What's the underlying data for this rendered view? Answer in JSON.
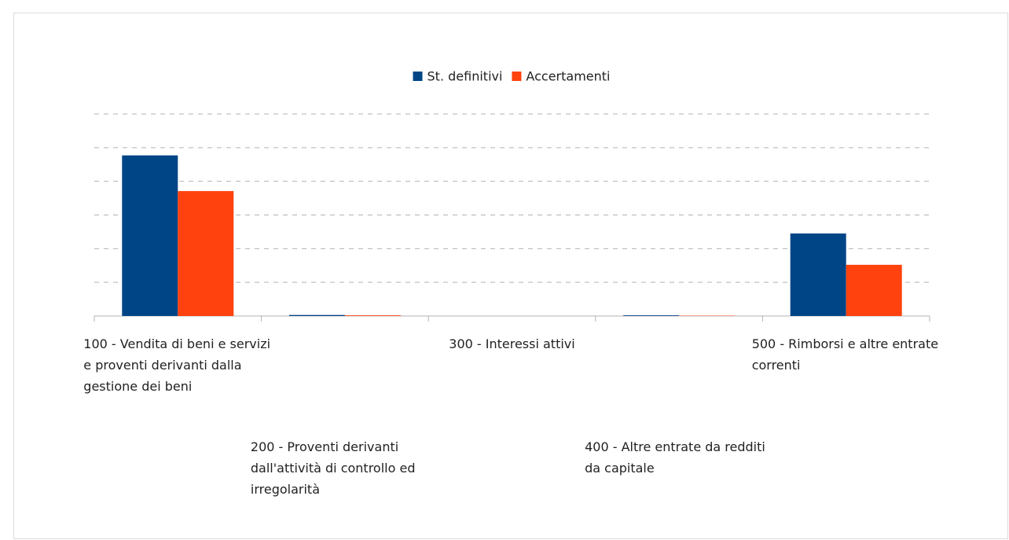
{
  "chart_data": {
    "type": "bar",
    "categories": [
      "100 - Vendita di beni e servizi e proventi derivanti dalla gestione dei beni",
      "200 - Proventi derivanti dall'attività di controllo ed irregolarità",
      "300 - Interessi attivi",
      "400 - Altre entrate da redditi da capitale",
      "500 - Rimborsi e altre entrate correnti"
    ],
    "series": [
      {
        "name": "St. definitivi",
        "color": "#004586",
        "values": [
          4.77,
          0.03,
          0,
          0.02,
          2.45
        ]
      },
      {
        "name": "Accertamenti",
        "color": "#ff420e",
        "values": [
          3.71,
          0.02,
          0,
          0.01,
          1.52
        ]
      }
    ],
    "ylim": [
      0,
      6
    ],
    "yticks": [
      0,
      1,
      2,
      3,
      4,
      5,
      6
    ],
    "grid": true,
    "legend": "top"
  }
}
